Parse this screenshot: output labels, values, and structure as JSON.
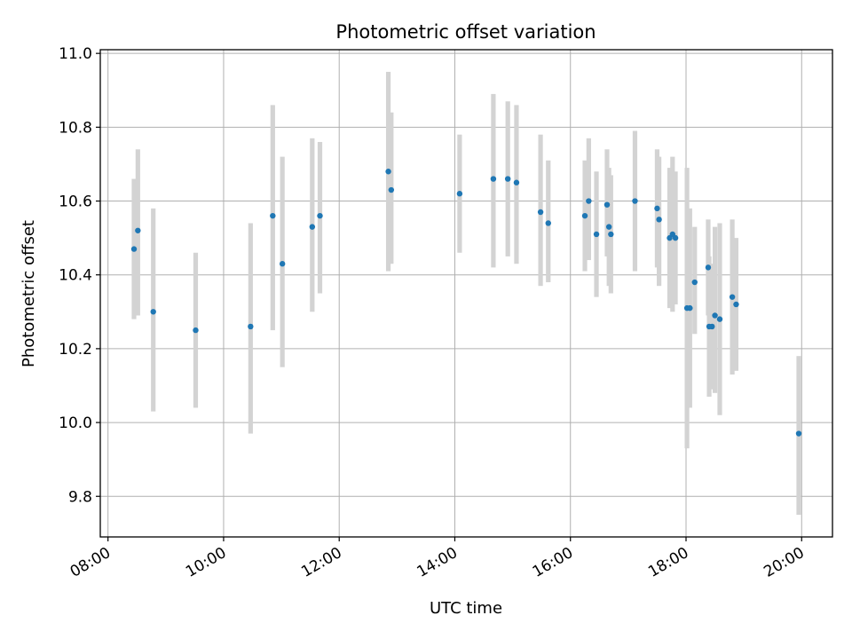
{
  "chart_data": {
    "type": "scatter",
    "title": "Photometric offset variation",
    "xlabel": "UTC time",
    "ylabel": "Photometric offset",
    "x_ticks": [
      "08:00",
      "10:00",
      "12:00",
      "14:00",
      "16:00",
      "18:00",
      "20:00"
    ],
    "y_ticks": [
      "9.8",
      "10.0",
      "10.2",
      "10.4",
      "10.6",
      "10.8",
      "11.0"
    ],
    "xlim": [
      "07:52",
      "20:32"
    ],
    "ylim": [
      9.69,
      11.01
    ],
    "grid": true,
    "colors": {
      "point": "#1f77b4",
      "errorbar": "#d3d3d3",
      "grid": "#b0b0b0"
    },
    "series": [
      {
        "points": [
          {
            "x": "08:27",
            "y": 10.47,
            "lo": 10.28,
            "hi": 10.66
          },
          {
            "x": "08:31",
            "y": 10.52,
            "lo": 10.29,
            "hi": 10.74
          },
          {
            "x": "08:47",
            "y": 10.3,
            "lo": 10.03,
            "hi": 10.58
          },
          {
            "x": "09:31",
            "y": 10.25,
            "lo": 10.04,
            "hi": 10.46
          },
          {
            "x": "10:28",
            "y": 10.26,
            "lo": 9.97,
            "hi": 10.54
          },
          {
            "x": "10:51",
            "y": 10.56,
            "lo": 10.25,
            "hi": 10.86
          },
          {
            "x": "11:01",
            "y": 10.43,
            "lo": 10.15,
            "hi": 10.72
          },
          {
            "x": "11:32",
            "y": 10.53,
            "lo": 10.3,
            "hi": 10.77
          },
          {
            "x": "11:40",
            "y": 10.56,
            "lo": 10.35,
            "hi": 10.76
          },
          {
            "x": "12:51",
            "y": 10.68,
            "lo": 10.41,
            "hi": 10.95
          },
          {
            "x": "12:54",
            "y": 10.63,
            "lo": 10.43,
            "hi": 10.84
          },
          {
            "x": "14:05",
            "y": 10.62,
            "lo": 10.46,
            "hi": 10.78
          },
          {
            "x": "14:40",
            "y": 10.66,
            "lo": 10.42,
            "hi": 10.89
          },
          {
            "x": "14:55",
            "y": 10.66,
            "lo": 10.45,
            "hi": 10.87
          },
          {
            "x": "15:04",
            "y": 10.65,
            "lo": 10.43,
            "hi": 10.86
          },
          {
            "x": "15:29",
            "y": 10.57,
            "lo": 10.37,
            "hi": 10.78
          },
          {
            "x": "15:37",
            "y": 10.54,
            "lo": 10.38,
            "hi": 10.71
          },
          {
            "x": "16:15",
            "y": 10.56,
            "lo": 10.41,
            "hi": 10.71
          },
          {
            "x": "16:19",
            "y": 10.6,
            "lo": 10.44,
            "hi": 10.77
          },
          {
            "x": "16:27",
            "y": 10.51,
            "lo": 10.34,
            "hi": 10.68
          },
          {
            "x": "16:38",
            "y": 10.59,
            "lo": 10.45,
            "hi": 10.74
          },
          {
            "x": "16:40",
            "y": 10.53,
            "lo": 10.37,
            "hi": 10.69
          },
          {
            "x": "16:42",
            "y": 10.51,
            "lo": 10.35,
            "hi": 10.67
          },
          {
            "x": "17:07",
            "y": 10.6,
            "lo": 10.41,
            "hi": 10.79
          },
          {
            "x": "17:30",
            "y": 10.58,
            "lo": 10.42,
            "hi": 10.74
          },
          {
            "x": "17:32",
            "y": 10.55,
            "lo": 10.37,
            "hi": 10.72
          },
          {
            "x": "17:43",
            "y": 10.5,
            "lo": 10.31,
            "hi": 10.69
          },
          {
            "x": "17:46",
            "y": 10.51,
            "lo": 10.3,
            "hi": 10.72
          },
          {
            "x": "17:49",
            "y": 10.5,
            "lo": 10.32,
            "hi": 10.68
          },
          {
            "x": "18:01",
            "y": 10.31,
            "lo": 9.93,
            "hi": 10.69
          },
          {
            "x": "18:04",
            "y": 10.31,
            "lo": 10.04,
            "hi": 10.58
          },
          {
            "x": "18:09",
            "y": 10.38,
            "lo": 10.24,
            "hi": 10.53
          },
          {
            "x": "18:23",
            "y": 10.42,
            "lo": 10.29,
            "hi": 10.55
          },
          {
            "x": "18:24",
            "y": 10.26,
            "lo": 10.07,
            "hi": 10.45
          },
          {
            "x": "18:27",
            "y": 10.26,
            "lo": 10.09,
            "hi": 10.43
          },
          {
            "x": "18:30",
            "y": 10.29,
            "lo": 10.08,
            "hi": 10.53
          },
          {
            "x": "18:35",
            "y": 10.28,
            "lo": 10.02,
            "hi": 10.54
          },
          {
            "x": "18:48",
            "y": 10.34,
            "lo": 10.13,
            "hi": 10.55
          },
          {
            "x": "18:52",
            "y": 10.32,
            "lo": 10.14,
            "hi": 10.5
          },
          {
            "x": "19:57",
            "y": 9.97,
            "lo": 9.75,
            "hi": 10.18
          }
        ]
      }
    ]
  }
}
